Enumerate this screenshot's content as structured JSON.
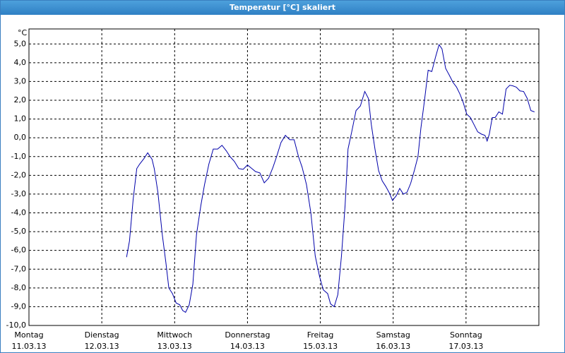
{
  "chart_data": {
    "type": "line",
    "title": "Temperatur [°C] skaliert",
    "y_unit": "°C",
    "xlim": [
      0,
      7
    ],
    "ylim": [
      -10,
      5.8
    ],
    "xticks": [
      {
        "value": 0,
        "label": "Montag",
        "date": "11.03.13"
      },
      {
        "value": 1,
        "label": "Dienstag",
        "date": "12.03.13"
      },
      {
        "value": 2,
        "label": "Mittwoch",
        "date": "13.03.13"
      },
      {
        "value": 3,
        "label": "Donnerstag",
        "date": "14.03.13"
      },
      {
        "value": 4,
        "label": "Freitag",
        "date": "15.03.13"
      },
      {
        "value": 5,
        "label": "Samstag",
        "date": "16.03.13"
      },
      {
        "value": 6,
        "label": "Sonntag",
        "date": "17.03.13"
      }
    ],
    "yticks": [
      {
        "value": 5,
        "label": "5,0"
      },
      {
        "value": 4,
        "label": "4,0"
      },
      {
        "value": 3,
        "label": "3,0"
      },
      {
        "value": 2,
        "label": "2,0"
      },
      {
        "value": 1,
        "label": "1,0"
      },
      {
        "value": 0,
        "label": "0,0"
      },
      {
        "value": -1,
        "label": "-1,0"
      },
      {
        "value": -2,
        "label": "-2,0"
      },
      {
        "value": -3,
        "label": "-3,0"
      },
      {
        "value": -4,
        "label": "-4,0"
      },
      {
        "value": -5,
        "label": "-5,0"
      },
      {
        "value": -6,
        "label": "-6,0"
      },
      {
        "value": -7,
        "label": "-7,0"
      },
      {
        "value": -8,
        "label": "-8,0"
      },
      {
        "value": -9,
        "label": "-9,0"
      },
      {
        "value": -10,
        "label": "-10,0"
      }
    ],
    "grid": true,
    "series": [
      {
        "name": "Temperatur",
        "color": "#0000aa",
        "x": [
          1.34,
          1.38,
          1.43,
          1.48,
          1.52,
          1.58,
          1.63,
          1.69,
          1.72,
          1.77,
          1.83,
          1.88,
          1.92,
          1.97,
          2.02,
          2.07,
          2.11,
          2.15,
          2.2,
          2.25,
          2.3,
          2.36,
          2.41,
          2.47,
          2.53,
          2.59,
          2.65,
          2.71,
          2.76,
          2.82,
          2.88,
          2.94,
          3.0,
          3.06,
          3.11,
          3.17,
          3.23,
          3.29,
          3.35,
          3.4,
          3.46,
          3.52,
          3.58,
          3.64,
          3.7,
          3.75,
          3.81,
          3.87,
          3.93,
          3.99,
          4.04,
          4.1,
          4.14,
          4.19,
          4.24,
          4.29,
          4.34,
          4.38,
          4.43,
          4.49,
          4.55,
          4.61,
          4.66,
          4.7,
          4.75,
          4.8,
          4.85,
          4.9,
          4.95,
          4.99,
          5.04,
          5.09,
          5.14,
          5.19,
          5.24,
          5.29,
          5.34,
          5.38,
          5.43,
          5.48,
          5.53,
          5.58,
          5.63,
          5.67,
          5.72,
          5.77,
          5.82,
          5.87,
          5.92,
          5.96,
          6.01,
          6.06,
          6.11,
          6.16,
          6.21,
          6.26,
          6.29,
          6.32,
          6.36,
          6.4,
          6.45,
          6.5,
          6.55,
          6.6,
          6.64,
          6.69,
          6.74,
          6.79,
          6.84,
          6.89,
          6.94
        ],
        "values": [
          -6.36,
          -5.5,
          -3.3,
          -1.64,
          -1.4,
          -1.1,
          -0.8,
          -1.15,
          -1.64,
          -2.9,
          -5.15,
          -6.66,
          -8.0,
          -8.3,
          -8.8,
          -8.9,
          -9.2,
          -9.3,
          -8.9,
          -7.8,
          -5.15,
          -3.6,
          -2.5,
          -1.4,
          -0.6,
          -0.6,
          -0.4,
          -0.7,
          -1.0,
          -1.26,
          -1.64,
          -1.68,
          -1.45,
          -1.64,
          -1.8,
          -1.87,
          -2.4,
          -2.15,
          -1.57,
          -1.0,
          -0.25,
          0.13,
          -0.1,
          -0.1,
          -1.0,
          -1.57,
          -2.5,
          -4.0,
          -6.3,
          -7.4,
          -8.1,
          -8.3,
          -8.85,
          -9.0,
          -8.36,
          -6.3,
          -3.6,
          -0.6,
          0.3,
          1.45,
          1.7,
          2.47,
          2.1,
          0.7,
          -0.6,
          -1.75,
          -2.3,
          -2.6,
          -2.96,
          -3.34,
          -3.1,
          -2.7,
          -3.0,
          -2.9,
          -2.43,
          -1.75,
          -1.0,
          0.5,
          2.0,
          3.6,
          3.53,
          4.28,
          4.96,
          4.74,
          3.7,
          3.34,
          2.96,
          2.7,
          2.3,
          1.9,
          1.26,
          1.08,
          0.7,
          0.32,
          0.2,
          0.13,
          -0.17,
          0.2,
          1.08,
          1.08,
          1.38,
          1.26,
          2.6,
          2.8,
          2.77,
          2.7,
          2.5,
          2.47,
          2.1,
          1.45,
          1.38
        ]
      }
    ]
  }
}
